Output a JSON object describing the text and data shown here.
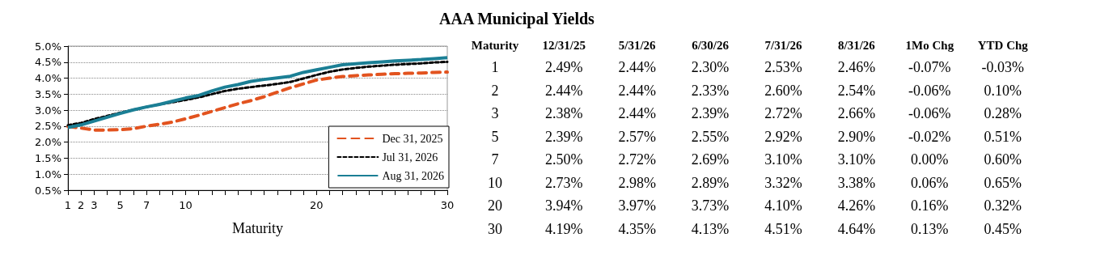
{
  "chart_data": [
    {
      "type": "line",
      "xlabel": "Maturity",
      "legend": "bottom right",
      "grid": "y",
      "marker": "none",
      "xlim": [
        1,
        30
      ],
      "xticks": [
        1,
        2,
        3,
        {
          "value": 4,
          "label": null
        },
        5,
        {
          "value": 6,
          "label": null
        },
        7,
        {
          "value": 8,
          "label": null
        },
        {
          "value": 9,
          "label": null
        },
        10,
        {
          "value": 11,
          "label": null
        },
        {
          "value": 12,
          "label": null
        },
        {
          "value": 13,
          "label": null
        },
        {
          "value": 14,
          "label": null
        },
        {
          "value": 15,
          "label": null
        },
        {
          "value": 16,
          "label": null
        },
        {
          "value": 17,
          "label": null
        },
        {
          "value": 18,
          "label": null
        },
        {
          "value": 19,
          "label": null
        },
        20,
        {
          "value": 21,
          "label": null
        },
        {
          "value": 22,
          "label": null
        },
        {
          "value": 23,
          "label": null
        },
        {
          "value": 24,
          "label": null
        },
        {
          "value": 25,
          "label": null
        },
        {
          "value": 26,
          "label": null
        },
        {
          "value": 27,
          "label": null
        },
        {
          "value": 28,
          "label": null
        },
        {
          "value": 29,
          "label": null
        },
        30
      ],
      "ylim": [
        0.5,
        5.0
      ],
      "yticks": [
        {
          "value": 0.5,
          "label": "0.5%"
        },
        {
          "value": 1.0,
          "label": "1.0%"
        },
        {
          "value": 1.5,
          "label": "1.5%"
        },
        {
          "value": 2.0,
          "label": "2.0%"
        },
        {
          "value": 2.5,
          "label": "2.5%"
        },
        {
          "value": 3.0,
          "label": "3.0%"
        },
        {
          "value": 3.5,
          "label": "3.5%"
        },
        {
          "value": 4.0,
          "label": "4.0%"
        },
        {
          "value": 4.5,
          "label": "4.5%"
        },
        {
          "value": 5.0,
          "label": "5.0%"
        }
      ],
      "x": [
        1,
        2,
        3,
        4,
        5,
        6,
        7,
        8,
        9,
        10,
        11,
        12,
        13,
        14,
        15,
        16,
        17,
        18,
        19,
        20,
        21,
        22,
        23,
        24,
        25,
        26,
        27,
        28,
        29,
        30
      ],
      "series": [
        {
          "name": "Dec 31, 2025",
          "color": "#e2531f",
          "line_style": "dashed",
          "values": [
            2.49,
            2.44,
            2.38,
            2.38,
            2.39,
            2.42,
            2.5,
            2.56,
            2.63,
            2.73,
            2.84,
            2.96,
            3.08,
            3.2,
            3.3,
            3.42,
            3.56,
            3.7,
            3.82,
            3.94,
            4.0,
            4.05,
            4.08,
            4.1,
            4.12,
            4.14,
            4.15,
            4.16,
            4.18,
            4.19
          ]
        },
        {
          "name": "Jul 31, 2026",
          "color": "#000000",
          "line_style": "dotted",
          "values": [
            2.53,
            2.6,
            2.72,
            2.82,
            2.92,
            3.01,
            3.1,
            3.18,
            3.25,
            3.32,
            3.4,
            3.5,
            3.6,
            3.67,
            3.72,
            3.77,
            3.82,
            3.88,
            3.99,
            4.1,
            4.2,
            4.27,
            4.32,
            4.36,
            4.39,
            4.42,
            4.44,
            4.46,
            4.49,
            4.51
          ]
        },
        {
          "name": "Aug 31, 2026",
          "color": "#1b7f95",
          "line_style": "solid",
          "values": [
            2.46,
            2.54,
            2.66,
            2.78,
            2.9,
            3.01,
            3.1,
            3.18,
            3.28,
            3.38,
            3.46,
            3.6,
            3.72,
            3.8,
            3.9,
            3.96,
            4.01,
            4.06,
            4.18,
            4.26,
            4.34,
            4.42,
            4.45,
            4.48,
            4.51,
            4.54,
            4.56,
            4.58,
            4.61,
            4.64
          ]
        }
      ]
    },
    {
      "type": "heatmap",
      "title": "AAA Municipal Yields",
      "ylabel": "Maturity",
      "categories": [
        "12/31/25",
        "5/31/26",
        "6/30/26",
        "7/31/26",
        "8/31/26",
        "1Mo Chg",
        "YTD Chg"
      ],
      "y_categories": [
        "1",
        "2",
        "3",
        "5",
        "7",
        "10",
        "20",
        "30"
      ],
      "cells": [
        [
          2.49,
          2.44,
          2.3,
          2.53,
          2.46,
          -0.07,
          -0.03
        ],
        [
          2.44,
          2.44,
          2.33,
          2.6,
          2.54,
          -0.06,
          0.1
        ],
        [
          2.38,
          2.44,
          2.39,
          2.72,
          2.66,
          -0.06,
          0.28
        ],
        [
          2.39,
          2.57,
          2.55,
          2.92,
          2.9,
          -0.02,
          0.51
        ],
        [
          2.5,
          2.72,
          2.69,
          3.1,
          3.1,
          0.0,
          0.6
        ],
        [
          2.73,
          2.98,
          2.89,
          3.32,
          3.38,
          0.06,
          0.65
        ],
        [
          3.94,
          3.97,
          3.73,
          4.1,
          4.26,
          0.16,
          0.32
        ],
        [
          4.19,
          4.35,
          4.13,
          4.51,
          4.64,
          0.13,
          0.45
        ]
      ],
      "cell_labels": [
        [
          "2.49%",
          "2.44%",
          "2.30%",
          "2.53%",
          "2.46%",
          "-0.07%",
          "-0.03%"
        ],
        [
          "2.44%",
          "2.44%",
          "2.33%",
          "2.60%",
          "2.54%",
          "-0.06%",
          "0.10%"
        ],
        [
          "2.38%",
          "2.44%",
          "2.39%",
          "2.72%",
          "2.66%",
          "-0.06%",
          "0.28%"
        ],
        [
          "2.39%",
          "2.57%",
          "2.55%",
          "2.92%",
          "2.90%",
          "-0.02%",
          "0.51%"
        ],
        [
          "2.50%",
          "2.72%",
          "2.69%",
          "3.10%",
          "3.10%",
          "0.00%",
          "0.60%"
        ],
        [
          "2.73%",
          "2.98%",
          "2.89%",
          "3.32%",
          "3.38%",
          "0.06%",
          "0.65%"
        ],
        [
          "3.94%",
          "3.97%",
          "3.73%",
          "4.10%",
          "4.26%",
          "0.16%",
          "0.32%"
        ],
        [
          "4.19%",
          "4.35%",
          "4.13%",
          "4.51%",
          "4.64%",
          "0.13%",
          "0.45%"
        ]
      ]
    }
  ]
}
